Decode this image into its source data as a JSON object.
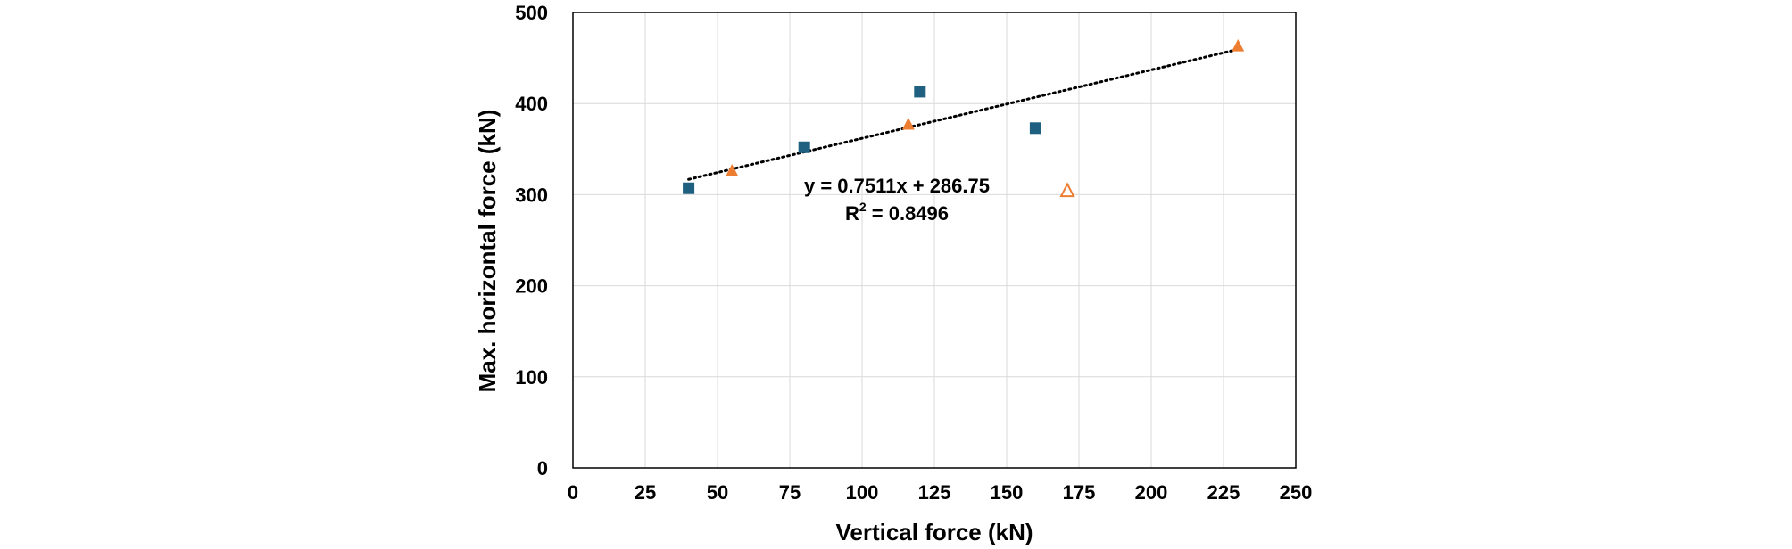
{
  "chart_data": {
    "type": "scatter",
    "title": "",
    "xlabel": "Vertical force (kN)",
    "ylabel": "Max. horizontal force (kN)",
    "xlim": [
      0,
      250
    ],
    "ylim": [
      0,
      500
    ],
    "x_ticks": [
      "0",
      "25",
      "50",
      "75",
      "100",
      "125",
      "150",
      "175",
      "200",
      "225",
      "250"
    ],
    "y_ticks": [
      "0",
      "100",
      "200",
      "300",
      "400",
      "500"
    ],
    "grid": true,
    "legend": "none",
    "series": [
      {
        "marker": "square",
        "color": "#1f5f7f",
        "points": [
          [
            40,
            307
          ],
          [
            80,
            352
          ],
          [
            120,
            413
          ],
          [
            160,
            373
          ]
        ]
      },
      {
        "marker": "triangle",
        "color": "#ed7d31",
        "points": [
          [
            55,
            326
          ],
          [
            116,
            377
          ],
          [
            230,
            463
          ]
        ]
      },
      {
        "marker": "triangle-open",
        "color": "#ed7d31",
        "points": [
          [
            171,
            304
          ]
        ]
      }
    ],
    "trendline": {
      "style": "dotted",
      "color": "#000000",
      "slope": 0.7511,
      "intercept": 286.75,
      "x_range": [
        40,
        230
      ],
      "equation": "y = 0.7511x + 286.75",
      "r2_label": "R",
      "r2_sup": "2",
      "r2_value": " = 0.8496"
    }
  }
}
